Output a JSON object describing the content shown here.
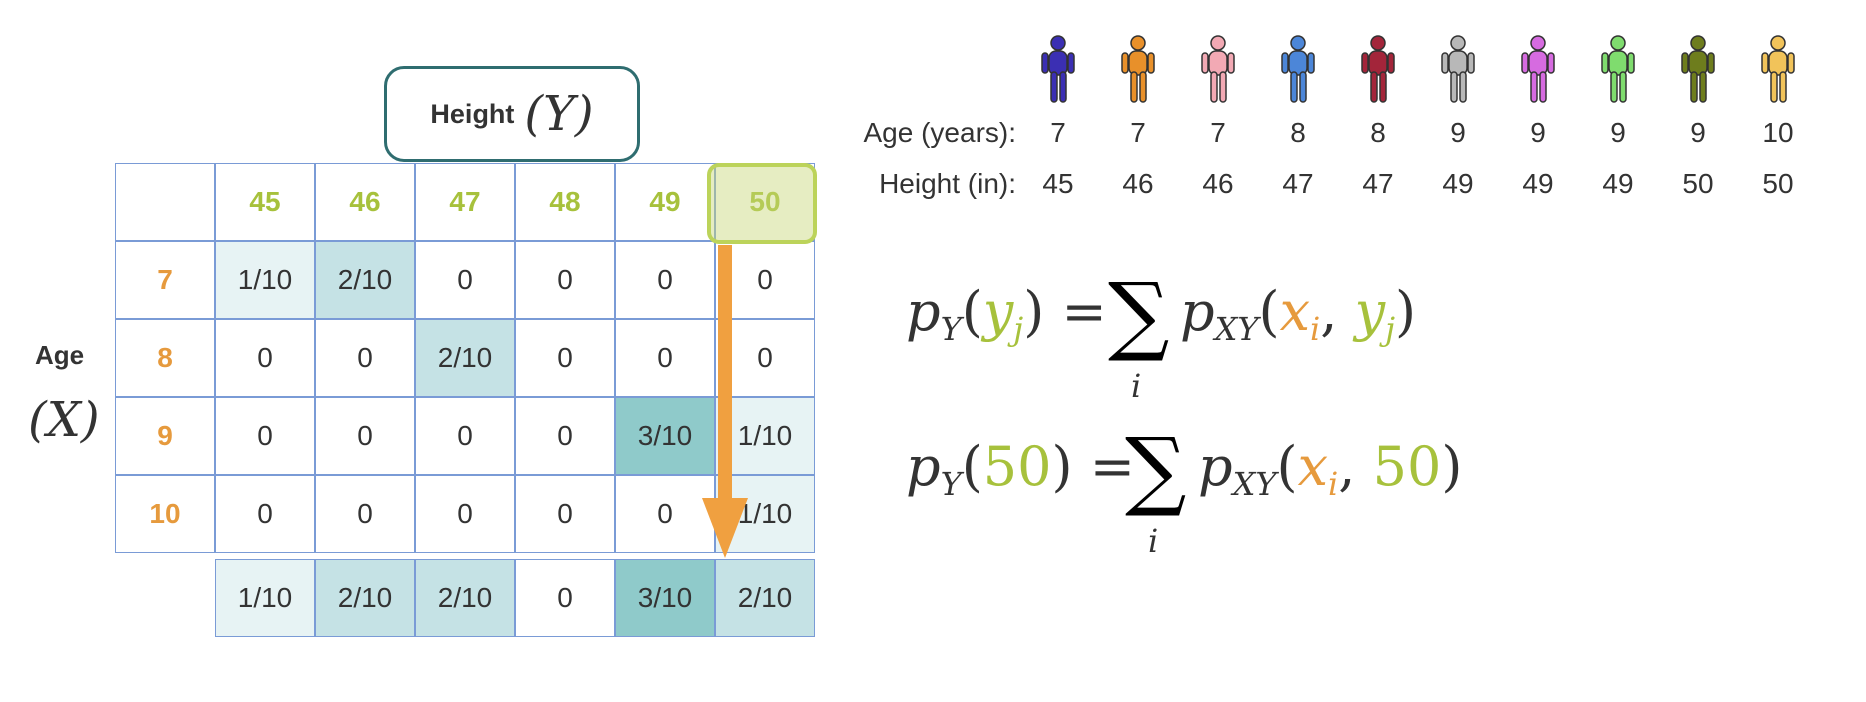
{
  "header": {
    "height_label": "Height",
    "height_var": "(Y)"
  },
  "side": {
    "age_label": "Age",
    "age_var": "(X)"
  },
  "table": {
    "heights": [
      "45",
      "46",
      "47",
      "48",
      "49",
      "50"
    ],
    "ages": [
      "7",
      "8",
      "9",
      "10"
    ],
    "rows": [
      [
        "1/10",
        "2/10",
        "0",
        "0",
        "0",
        "0"
      ],
      [
        "0",
        "0",
        "2/10",
        "0",
        "0",
        "0"
      ],
      [
        "0",
        "0",
        "0",
        "0",
        "3/10",
        "1/10"
      ],
      [
        "0",
        "0",
        "0",
        "0",
        "0",
        "1/10"
      ]
    ],
    "marginal": [
      "1/10",
      "2/10",
      "2/10",
      "0",
      "3/10",
      "2/10"
    ],
    "selected_height": "50"
  },
  "people": {
    "age_label": "Age (years):",
    "height_label": "Height (in):",
    "ages": [
      "7",
      "7",
      "7",
      "8",
      "8",
      "9",
      "9",
      "9",
      "9",
      "10"
    ],
    "heights": [
      "45",
      "46",
      "46",
      "47",
      "47",
      "49",
      "49",
      "49",
      "50",
      "50"
    ],
    "colors": [
      "#3b2fb3",
      "#e8902a",
      "#f2a9b4",
      "#4c86d8",
      "#a3253a",
      "#b8b8b8",
      "#d66be0",
      "#7fdc6e",
      "#6e7d1d",
      "#f1c35a"
    ],
    "icon": "person-walking-icon"
  },
  "formulas": {
    "f1": {
      "p": "p",
      "p_sub": "Y",
      "open": "(",
      "yj": "y",
      "yj_sub": "j",
      "close": ")",
      "eq": "=",
      "sum": "∑",
      "sum_index": "i",
      "pxy": "p",
      "pxy_sub": "XY",
      "xi": "x",
      "xi_sub": "i",
      "comma": ",",
      "y2": "y",
      "y2_sub": "j"
    },
    "f2": {
      "p": "p",
      "p_sub": "Y",
      "open": "(",
      "val": "50",
      "close": ")",
      "eq": "=",
      "sum": "∑",
      "sum_index": "i",
      "pxy": "p",
      "pxy_sub": "XY",
      "xi": "x",
      "xi_sub": "i",
      "comma": ",",
      "val2": "50"
    }
  },
  "colors": {
    "green": "#a7c13c",
    "orange": "#e69a3d",
    "teal": "#2f6d70",
    "grid": "#7a9bd6",
    "arrow": "#f0a040"
  }
}
